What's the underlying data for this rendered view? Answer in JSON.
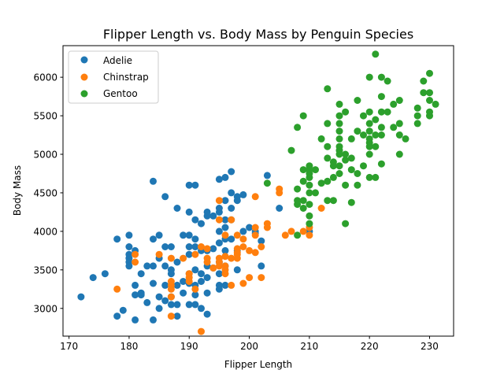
{
  "chart_data": {
    "type": "scatter",
    "title": "Flipper Length vs. Body Mass by Penguin Species",
    "xlabel": "Flipper Length",
    "ylabel": "Body Mass",
    "xlim": [
      169,
      234
    ],
    "ylim": [
      2640,
      6410
    ],
    "xticks": [
      170,
      180,
      190,
      200,
      210,
      220,
      230
    ],
    "yticks": [
      3000,
      3500,
      4000,
      4500,
      5000,
      5500,
      6000
    ],
    "grid": false,
    "legend_position": "upper left",
    "series": [
      {
        "name": "Adelie",
        "color": "#1f77b4",
        "points": [
          [
            172,
            3150
          ],
          [
            174,
            3400
          ],
          [
            176,
            3450
          ],
          [
            178,
            3900
          ],
          [
            178,
            2900
          ],
          [
            179,
            2975
          ],
          [
            180,
            3950
          ],
          [
            180,
            3800
          ],
          [
            180,
            3700
          ],
          [
            180,
            3650
          ],
          [
            180,
            3600
          ],
          [
            180,
            3550
          ],
          [
            181,
            3750
          ],
          [
            181,
            3300
          ],
          [
            181,
            3175
          ],
          [
            181,
            2850
          ],
          [
            182,
            3200
          ],
          [
            182,
            3175
          ],
          [
            182,
            3450
          ],
          [
            183,
            3550
          ],
          [
            183,
            3075
          ],
          [
            184,
            4650
          ],
          [
            184,
            3900
          ],
          [
            184,
            3550
          ],
          [
            184,
            3325
          ],
          [
            184,
            2850
          ],
          [
            185,
            3950
          ],
          [
            185,
            3650
          ],
          [
            185,
            3150
          ],
          [
            185,
            3000
          ],
          [
            186,
            4450
          ],
          [
            186,
            3800
          ],
          [
            186,
            3550
          ],
          [
            186,
            3300
          ],
          [
            186,
            3100
          ],
          [
            187,
            3800
          ],
          [
            187,
            3500
          ],
          [
            187,
            3450
          ],
          [
            187,
            3150
          ],
          [
            187,
            3050
          ],
          [
            188,
            4300
          ],
          [
            188,
            3600
          ],
          [
            188,
            3300
          ],
          [
            188,
            3050
          ],
          [
            188,
            2900
          ],
          [
            189,
            3950
          ],
          [
            189,
            3350
          ],
          [
            189,
            3200
          ],
          [
            190,
            4600
          ],
          [
            190,
            4250
          ],
          [
            190,
            3950
          ],
          [
            190,
            3800
          ],
          [
            190,
            3700
          ],
          [
            190,
            3450
          ],
          [
            190,
            3050
          ],
          [
            190,
            3325
          ],
          [
            191,
            4600
          ],
          [
            191,
            4150
          ],
          [
            191,
            3900
          ],
          [
            191,
            3800
          ],
          [
            191,
            3500
          ],
          [
            191,
            3300
          ],
          [
            191,
            3175
          ],
          [
            191,
            3050
          ],
          [
            192,
            4100
          ],
          [
            192,
            3750
          ],
          [
            192,
            3450
          ],
          [
            192,
            3350
          ],
          [
            192,
            3000
          ],
          [
            193,
            4200
          ],
          [
            193,
            4250
          ],
          [
            193,
            3750
          ],
          [
            193,
            3550
          ],
          [
            193,
            3400
          ],
          [
            193,
            3200
          ],
          [
            193,
            2925
          ],
          [
            194,
            4200
          ],
          [
            194,
            3775
          ],
          [
            194,
            3525
          ],
          [
            195,
            4675
          ],
          [
            195,
            4300
          ],
          [
            195,
            4250
          ],
          [
            195,
            4000
          ],
          [
            195,
            3850
          ],
          [
            195,
            3600
          ],
          [
            195,
            3450
          ],
          [
            195,
            3300
          ],
          [
            195,
            3250
          ],
          [
            196,
            4700
          ],
          [
            196,
            4400
          ],
          [
            196,
            4150
          ],
          [
            196,
            4050
          ],
          [
            196,
            3900
          ],
          [
            196,
            3750
          ],
          [
            196,
            3550
          ],
          [
            196,
            3300
          ],
          [
            197,
            4775
          ],
          [
            197,
            4500
          ],
          [
            197,
            4150
          ],
          [
            197,
            3900
          ],
          [
            197,
            4300
          ],
          [
            198,
            4450
          ],
          [
            198,
            4400
          ],
          [
            198,
            3500
          ],
          [
            198,
            3750
          ],
          [
            199,
            4475
          ],
          [
            199,
            4000
          ],
          [
            200,
            4050
          ],
          [
            201,
            4000
          ],
          [
            201,
            3975
          ],
          [
            202,
            3875
          ],
          [
            202,
            3550
          ],
          [
            203,
            4725
          ],
          [
            205,
            4300
          ],
          [
            210,
            4000
          ]
        ]
      },
      {
        "name": "Chinstrap",
        "color": "#ff7f0e",
        "points": [
          [
            178,
            3250
          ],
          [
            181,
            3700
          ],
          [
            181,
            3600
          ],
          [
            185,
            3700
          ],
          [
            187,
            3650
          ],
          [
            187,
            3350
          ],
          [
            187,
            3300
          ],
          [
            187,
            3250
          ],
          [
            187,
            3150
          ],
          [
            187,
            2900
          ],
          [
            189,
            3650
          ],
          [
            190,
            3450
          ],
          [
            190,
            3400
          ],
          [
            190,
            3350
          ],
          [
            191,
            3700
          ],
          [
            191,
            3250
          ],
          [
            192,
            3800
          ],
          [
            192,
            2700
          ],
          [
            193,
            3775
          ],
          [
            193,
            3650
          ],
          [
            193,
            3600
          ],
          [
            194,
            3525
          ],
          [
            195,
            4400
          ],
          [
            195,
            4150
          ],
          [
            195,
            3650
          ],
          [
            195,
            3600
          ],
          [
            195,
            3550
          ],
          [
            196,
            3950
          ],
          [
            196,
            3675
          ],
          [
            196,
            3550
          ],
          [
            196,
            3500
          ],
          [
            196,
            3450
          ],
          [
            197,
            4150
          ],
          [
            197,
            3650
          ],
          [
            197,
            3300
          ],
          [
            198,
            3950
          ],
          [
            198,
            3775
          ],
          [
            198,
            3725
          ],
          [
            198,
            3700
          ],
          [
            198,
            3650
          ],
          [
            199,
            3800
          ],
          [
            199,
            3900
          ],
          [
            199,
            3325
          ],
          [
            200,
            3400
          ],
          [
            200,
            3750
          ],
          [
            201,
            4450
          ],
          [
            201,
            4050
          ],
          [
            201,
            3950
          ],
          [
            201,
            3725
          ],
          [
            202,
            3400
          ],
          [
            202,
            3800
          ],
          [
            203,
            4100
          ],
          [
            203,
            4050
          ],
          [
            205,
            4550
          ],
          [
            205,
            4500
          ],
          [
            206,
            3950
          ],
          [
            207,
            4000
          ],
          [
            209,
            4000
          ],
          [
            210,
            3950
          ],
          [
            210,
            4050
          ],
          [
            212,
            4300
          ]
        ]
      },
      {
        "name": "Gentoo",
        "color": "#2ca02c",
        "points": [
          [
            203,
            4625
          ],
          [
            207,
            5050
          ],
          [
            208,
            3950
          ],
          [
            208,
            4350
          ],
          [
            208,
            4400
          ],
          [
            208,
            4550
          ],
          [
            208,
            5350
          ],
          [
            209,
            4300
          ],
          [
            209,
            4400
          ],
          [
            209,
            4650
          ],
          [
            209,
            4800
          ],
          [
            209,
            5500
          ],
          [
            210,
            4200
          ],
          [
            210,
            4100
          ],
          [
            210,
            4350
          ],
          [
            210,
            4500
          ],
          [
            210,
            4600
          ],
          [
            210,
            4700
          ],
          [
            210,
            4750
          ],
          [
            210,
            4800
          ],
          [
            210,
            4850
          ],
          [
            211,
            4500
          ],
          [
            211,
            4800
          ],
          [
            212,
            4625
          ],
          [
            212,
            5200
          ],
          [
            213,
            4400
          ],
          [
            213,
            4650
          ],
          [
            213,
            4950
          ],
          [
            213,
            5100
          ],
          [
            213,
            5400
          ],
          [
            213,
            5850
          ],
          [
            214,
            4400
          ],
          [
            214,
            4700
          ],
          [
            214,
            4850
          ],
          [
            214,
            4900
          ],
          [
            215,
            4750
          ],
          [
            215,
            4850
          ],
          [
            215,
            5000
          ],
          [
            215,
            5050
          ],
          [
            215,
            5100
          ],
          [
            215,
            5200
          ],
          [
            215,
            5300
          ],
          [
            215,
            5400
          ],
          [
            215,
            5500
          ],
          [
            215,
            5650
          ],
          [
            216,
            4100
          ],
          [
            216,
            4600
          ],
          [
            216,
            4925
          ],
          [
            216,
            5000
          ],
          [
            216,
            5550
          ],
          [
            217,
            4375
          ],
          [
            217,
            4800
          ],
          [
            217,
            4950
          ],
          [
            217,
            5200
          ],
          [
            218,
            4600
          ],
          [
            218,
            4750
          ],
          [
            218,
            5300
          ],
          [
            218,
            5700
          ],
          [
            219,
            4850
          ],
          [
            219,
            5250
          ],
          [
            219,
            5500
          ],
          [
            220,
            4700
          ],
          [
            220,
            5000
          ],
          [
            220,
            5100
          ],
          [
            220,
            5150
          ],
          [
            220,
            5200
          ],
          [
            220,
            5300
          ],
          [
            220,
            5400
          ],
          [
            220,
            6000
          ],
          [
            220,
            5550
          ],
          [
            221,
            4700
          ],
          [
            221,
            5100
          ],
          [
            221,
            5250
          ],
          [
            221,
            5450
          ],
          [
            221,
            6300
          ],
          [
            222,
            4875
          ],
          [
            222,
            5250
          ],
          [
            222,
            5350
          ],
          [
            222,
            5550
          ],
          [
            222,
            5750
          ],
          [
            222,
            6000
          ],
          [
            223,
            5550
          ],
          [
            223,
            5950
          ],
          [
            224,
            5350
          ],
          [
            224,
            5650
          ],
          [
            225,
            5000
          ],
          [
            225,
            5250
          ],
          [
            225,
            5400
          ],
          [
            225,
            5700
          ],
          [
            226,
            5200
          ],
          [
            228,
            5400
          ],
          [
            228,
            5500
          ],
          [
            228,
            5600
          ],
          [
            229,
            5800
          ],
          [
            229,
            5950
          ],
          [
            230,
            5500
          ],
          [
            230,
            5550
          ],
          [
            230,
            5700
          ],
          [
            230,
            5800
          ],
          [
            230,
            6050
          ],
          [
            231,
            5650
          ]
        ]
      }
    ]
  }
}
